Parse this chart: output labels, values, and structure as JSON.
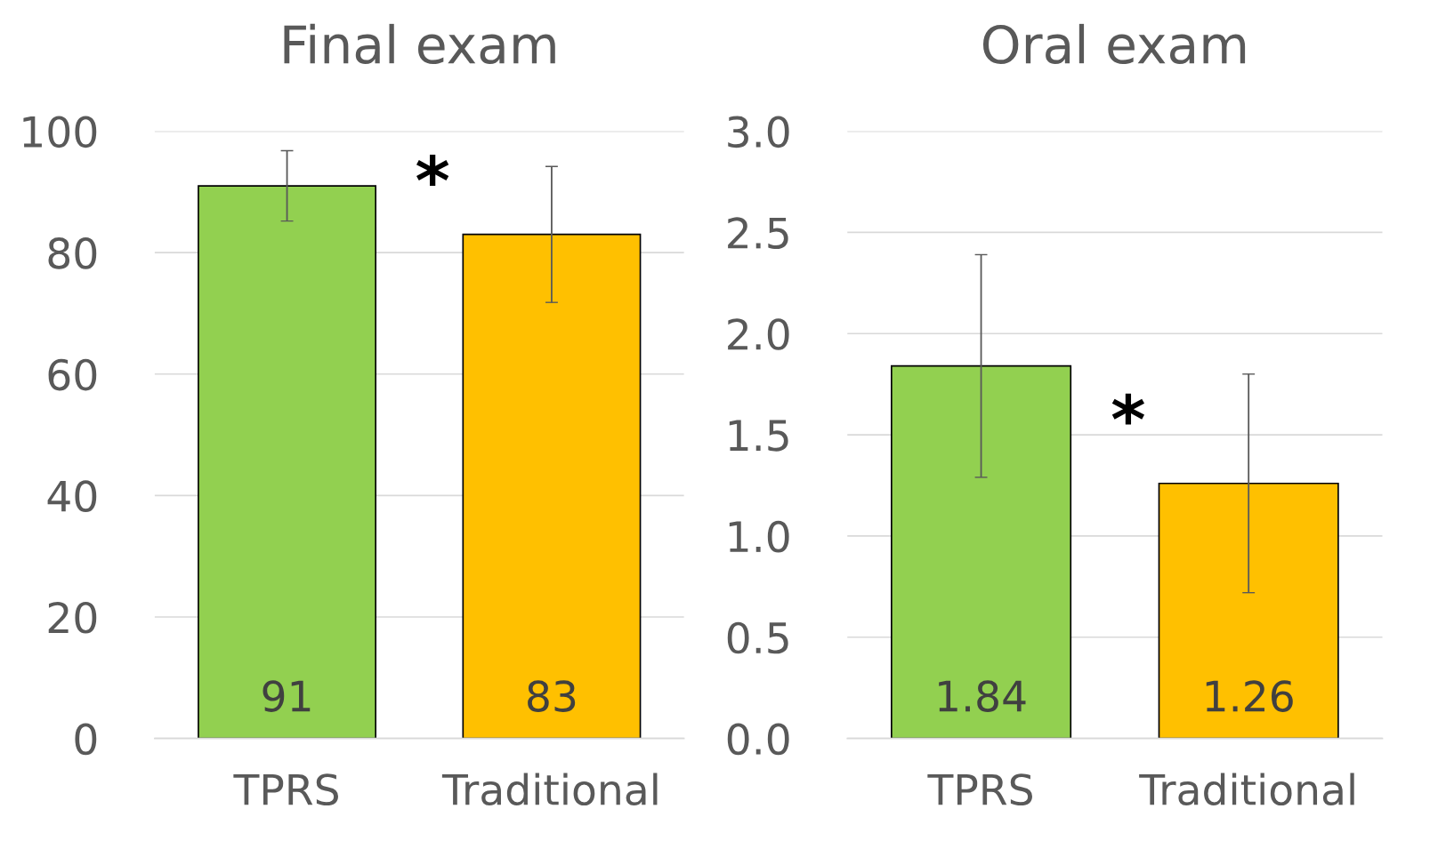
{
  "chart_data": [
    {
      "type": "bar",
      "title": "Final exam",
      "categories": [
        "TPRS",
        "Traditional"
      ],
      "values": [
        91,
        83
      ],
      "colors": [
        "#92d050",
        "#ffc000"
      ],
      "errors": [
        5.8,
        11.2
      ],
      "ylim": [
        0,
        100
      ],
      "yticks": [
        0,
        20,
        40,
        60,
        80,
        100
      ],
      "grid": "y",
      "data_labels": true,
      "annotations": [
        "*"
      ]
    },
    {
      "type": "bar",
      "title": "Oral exam",
      "categories": [
        "TPRS",
        "Traditional"
      ],
      "values": [
        1.84,
        1.26
      ],
      "colors": [
        "#92d050",
        "#ffc000"
      ],
      "errors": [
        0.55,
        0.54
      ],
      "ylim": [
        0,
        3.0
      ],
      "yticks": [
        {
          "value": 0,
          "label": "0.0"
        },
        {
          "value": 0.5,
          "label": "0.5"
        },
        {
          "value": 1.0,
          "label": "1.0"
        },
        {
          "value": 1.5,
          "label": "1.5"
        },
        {
          "value": 2.0,
          "label": "2.0"
        },
        {
          "value": 2.5,
          "label": "2.5"
        },
        {
          "value": 3.0,
          "label": "3.0"
        }
      ],
      "grid": "y",
      "data_labels": true,
      "annotations": [
        "*"
      ]
    }
  ]
}
